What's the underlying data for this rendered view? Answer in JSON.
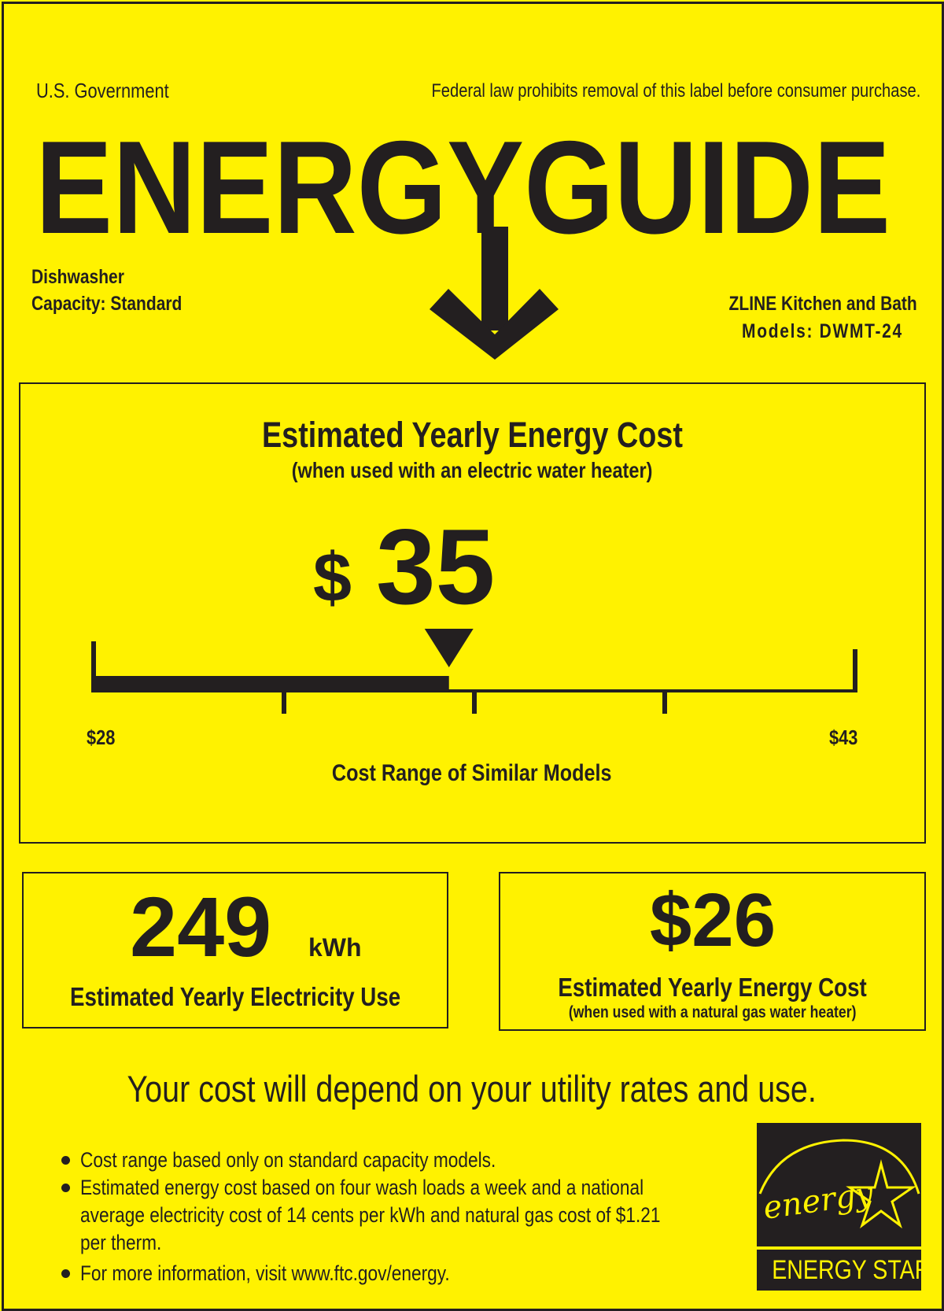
{
  "header": {
    "government": "U.S. Government",
    "notice": "Federal law prohibits removal of this label before consumer purchase.",
    "title": "ENERGYGUIDE"
  },
  "appliance": {
    "type": "Dishwasher",
    "capacity": "Capacity: Standard",
    "manufacturer": "ZLINE Kitchen and Bath",
    "models": "Models: DWMT-24"
  },
  "main_cost": {
    "title": "Estimated Yearly Energy Cost",
    "subtitle": "(when used with an electric water heater)",
    "currency": "$",
    "value": "35",
    "range_min_label": "$28",
    "range_max_label": "$43",
    "range_min": 28,
    "range_max": 43,
    "marker_value": 35,
    "range_caption": "Cost Range of Similar Models"
  },
  "electricity": {
    "value": "249",
    "unit": "kWh",
    "label": "Estimated Yearly Electricity Use"
  },
  "gas_cost": {
    "value": "$26",
    "label": "Estimated Yearly Energy Cost",
    "sublabel": "(when used with a natural gas water heater)"
  },
  "disclaimer": "Your cost will depend on your utility rates and use.",
  "notes": [
    "Cost range based only on standard capacity models.",
    "Estimated energy cost based on four wash loads a week and a national",
    "average electricity cost of 14 cents per kWh and natural gas cost of $1.21",
    "per therm.",
    "For more information, visit www.ftc.gov/energy."
  ],
  "energy_star": {
    "script": "energy",
    "label": "ENERGY STAR"
  },
  "colors": {
    "background": "#fff200",
    "ink": "#231f20"
  }
}
